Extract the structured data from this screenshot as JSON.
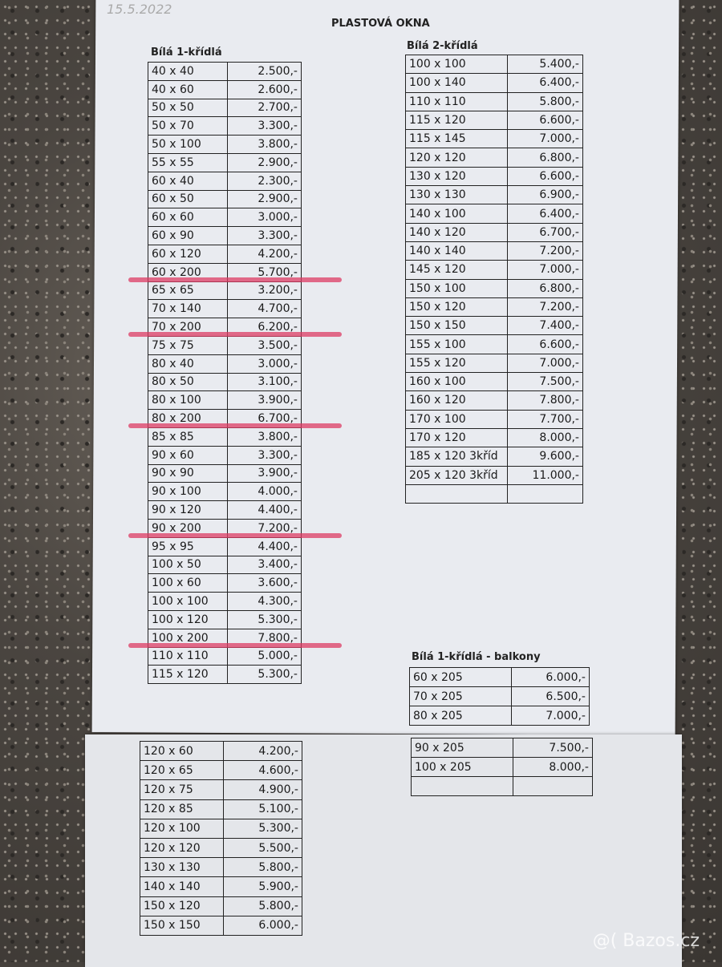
{
  "handwritten_date": "15.5.2022",
  "title": "PLASTOVÁ OKNA",
  "colors": {
    "strike": "#dc3c64",
    "paper": "#e9ebf0"
  },
  "left_table": {
    "caption": "Bílá 1-křídlá",
    "rows": [
      [
        "40 x 40",
        "2.500,-"
      ],
      [
        "40 x 60",
        "2.600,-"
      ],
      [
        "50 x 50",
        "2.700,-"
      ],
      [
        "50 x 70",
        "3.300,-"
      ],
      [
        "50 x 100",
        "3.800,-"
      ],
      [
        "55 x 55",
        "2.900,-"
      ],
      [
        "60 x 40",
        "2.300,-"
      ],
      [
        "60 x 50",
        "2.900,-"
      ],
      [
        "60 x 60",
        "3.000,-"
      ],
      [
        "60 x 90",
        "3.300,-"
      ],
      [
        "60 x 120",
        "4.200,-"
      ],
      [
        "60 x 200",
        "5.700,-",
        true
      ],
      [
        "65 x 65",
        "3.200,-"
      ],
      [
        "70 x 140",
        "4.700,-"
      ],
      [
        "70 x 200",
        "6.200,-",
        true
      ],
      [
        "75 x 75",
        "3.500,-"
      ],
      [
        "80 x 40",
        "3.000,-"
      ],
      [
        "80 x 50",
        "3.100,-"
      ],
      [
        "80 x 100",
        "3.900,-"
      ],
      [
        "80 x 200",
        "6.700,-",
        true
      ],
      [
        "85 x 85",
        "3.800,-"
      ],
      [
        "90 x 60",
        "3.300,-"
      ],
      [
        "90 x 90",
        "3.900,-"
      ],
      [
        "90 x 100",
        "4.000,-"
      ],
      [
        "90 x 120",
        "4.400,-"
      ],
      [
        "90 x 200",
        "7.200,-",
        true
      ],
      [
        "95 x 95",
        "4.400,-"
      ],
      [
        "100 x 50",
        "3.400,-"
      ],
      [
        "100 x 60",
        "3.600,-"
      ],
      [
        "100 x 100",
        "4.300,-"
      ],
      [
        "100 x 120",
        "5.300,-"
      ],
      [
        "100 x 200",
        "7.800,-",
        true
      ],
      [
        "110 x 110",
        "5.000,-"
      ],
      [
        "115 x 120",
        "5.300,-"
      ]
    ]
  },
  "left_table_cont": {
    "rows": [
      [
        "120 x 60",
        "4.200,-"
      ],
      [
        "120 x 65",
        "4.600,-"
      ],
      [
        "120 x 75",
        "4.900,-"
      ],
      [
        "120 x 85",
        "5.100,-"
      ],
      [
        "120 x 100",
        "5.300,-"
      ],
      [
        "120 x 120",
        "5.500,-"
      ],
      [
        "130 x 130",
        "5.800,-"
      ],
      [
        "140 x 140",
        "5.900,-"
      ],
      [
        "150 x 120",
        "5.800,-"
      ],
      [
        "150 x 150",
        "6.000,-"
      ]
    ]
  },
  "right_table": {
    "caption": "Bílá 2-křídlá",
    "rows": [
      [
        "100 x 100",
        "5.400,-"
      ],
      [
        "100 x 140",
        "6.400,-"
      ],
      [
        "110 x 110",
        "5.800,-"
      ],
      [
        "115 x 120",
        "6.600,-"
      ],
      [
        "115 x 145",
        "7.000,-"
      ],
      [
        "120 x 120",
        "6.800,-"
      ],
      [
        "130 x 120",
        "6.600,-"
      ],
      [
        "130 x 130",
        "6.900,-"
      ],
      [
        "140 x 100",
        "6.400,-"
      ],
      [
        "140 x 120",
        "6.700,-"
      ],
      [
        "140 x 140",
        "7.200,-"
      ],
      [
        "145 x 120",
        "7.000,-"
      ],
      [
        "150 x 100",
        "6.800,-"
      ],
      [
        "150 x 120",
        "7.200,-"
      ],
      [
        "150 x 150",
        "7.400,-"
      ],
      [
        "155 x 100",
        "6.600,-"
      ],
      [
        "155 x 120",
        "7.000,-"
      ],
      [
        "160 x 100",
        "7.500,-"
      ],
      [
        "160 x 120",
        "7.800,-"
      ],
      [
        "170 x 100",
        "7.700,-"
      ],
      [
        "170 x 120",
        "8.000,-"
      ],
      [
        "185 x 120 3kříd",
        "9.600,-"
      ],
      [
        "205 x 120 3kříd",
        "11.000,-"
      ],
      [
        "",
        ""
      ]
    ]
  },
  "balcony_table": {
    "caption": "Bílá 1-křídlá - balkony",
    "rows": [
      [
        "60 x 205",
        "6.000,-"
      ],
      [
        "70 x 205",
        "6.500,-"
      ],
      [
        "80 x 205",
        "7.000,-"
      ]
    ]
  },
  "balcony_table_cont": {
    "rows": [
      [
        "90 x 205",
        "7.500,-"
      ],
      [
        "100 x 205",
        "8.000,-"
      ],
      [
        "",
        ""
      ]
    ]
  },
  "watermark": "@( Bazos.cz"
}
